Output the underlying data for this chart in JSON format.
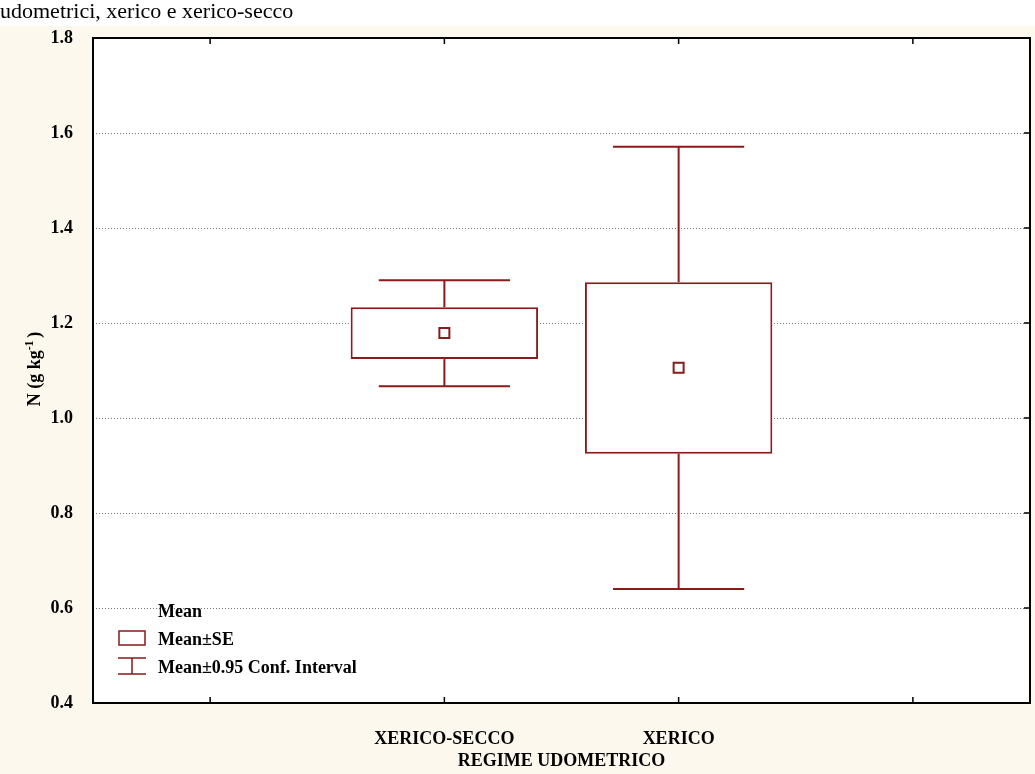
{
  "chart_data": {
    "type": "box",
    "xlabel": "REGIME UDOMETRICO",
    "ylabel": "N (g kg$^{-1}$)",
    "categories": [
      null,
      "XERICO-SECCO",
      "XERICO",
      null
    ],
    "series": [
      {
        "color": "#8b1a1a",
        "boxes": [
          null,
          {
            "low": 1.067,
            "q1": 1.124,
            "q3": 1.233,
            "high": 1.29,
            "mean": 1.179
          },
          {
            "low": 0.64,
            "q1": 0.925,
            "q3": 1.286,
            "high": 1.571,
            "mean": 1.106
          },
          null
        ]
      }
    ],
    "ylim": [
      0.4,
      1.8
    ],
    "yticks": [
      0.4,
      0.6,
      0.8,
      {
        "value": 1,
        "label": "1.0"
      },
      1.2,
      1.4,
      1.6,
      1.8
    ],
    "grid": "y",
    "annotations": [
      "udometrici, xerico e xerico-secco",
      "Mean",
      "Mean±SE",
      "Mean±0.95 Conf. Interval"
    ]
  }
}
